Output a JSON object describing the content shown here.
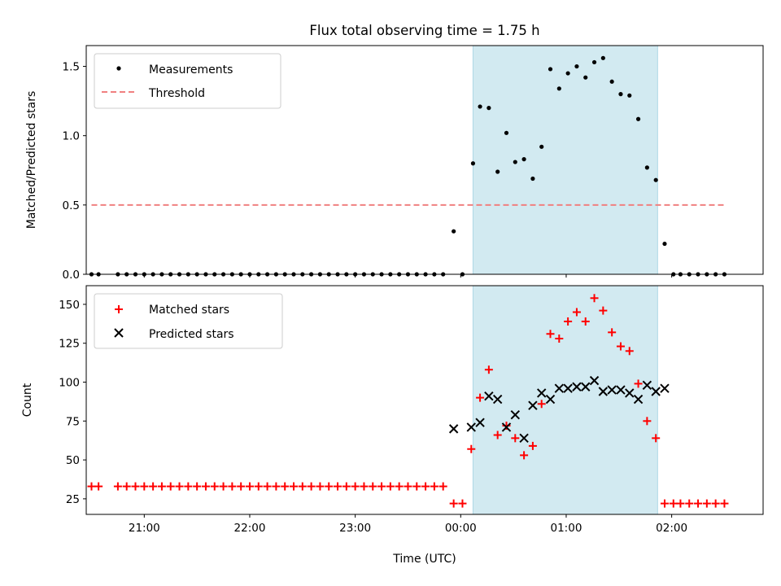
{
  "chart_data": [
    {
      "type": "scatter",
      "title": "Flux total observing time = 1.75 h",
      "xlabel": "",
      "ylabel": "Matched/Predicted stars",
      "ylim": [
        0,
        1.65
      ],
      "yticks": [
        "0.0",
        "0.5",
        "1.0",
        "1.5"
      ],
      "ytick_values": [
        0,
        0.5,
        1.0,
        1.5
      ],
      "xlim": [
        "20:27",
        "02:52"
      ],
      "shaded_interval": [
        "00:07",
        "01:52"
      ],
      "shade_color": "#add8e6",
      "legend": {
        "position": "upper left",
        "entries": [
          "Measurements",
          "Threshold"
        ]
      },
      "threshold": {
        "name": "Threshold",
        "value": 0.5,
        "x_start": "20:30",
        "x_end": "02:30",
        "color": "#f08080",
        "style": "dashed"
      },
      "series": [
        {
          "name": "Measurements",
          "color": "#000000",
          "marker": "dot",
          "points": [
            [
              "20:30",
              0
            ],
            [
              "20:34",
              0
            ],
            [
              "20:45",
              0
            ],
            [
              "20:50",
              0
            ],
            [
              "20:55",
              0
            ],
            [
              "21:00",
              0
            ],
            [
              "21:05",
              0
            ],
            [
              "21:10",
              0
            ],
            [
              "21:15",
              0
            ],
            [
              "21:20",
              0
            ],
            [
              "21:25",
              0
            ],
            [
              "21:30",
              0
            ],
            [
              "21:35",
              0
            ],
            [
              "21:40",
              0
            ],
            [
              "21:45",
              0
            ],
            [
              "21:50",
              0
            ],
            [
              "21:55",
              0
            ],
            [
              "22:00",
              0
            ],
            [
              "22:05",
              0
            ],
            [
              "22:10",
              0
            ],
            [
              "22:15",
              0
            ],
            [
              "22:20",
              0
            ],
            [
              "22:25",
              0
            ],
            [
              "22:30",
              0
            ],
            [
              "22:35",
              0
            ],
            [
              "22:40",
              0
            ],
            [
              "22:45",
              0
            ],
            [
              "22:50",
              0
            ],
            [
              "22:55",
              0
            ],
            [
              "23:00",
              0
            ],
            [
              "23:05",
              0
            ],
            [
              "23:10",
              0
            ],
            [
              "23:15",
              0
            ],
            [
              "23:20",
              0
            ],
            [
              "23:25",
              0
            ],
            [
              "23:30",
              0
            ],
            [
              "23:35",
              0
            ],
            [
              "23:40",
              0
            ],
            [
              "23:45",
              0
            ],
            [
              "23:50",
              0
            ],
            [
              "23:56",
              0.31
            ],
            [
              "00:01",
              0
            ],
            [
              "00:07",
              0.8
            ],
            [
              "00:11",
              1.21
            ],
            [
              "00:16",
              1.2
            ],
            [
              "00:21",
              0.74
            ],
            [
              "00:26",
              1.02
            ],
            [
              "00:31",
              0.81
            ],
            [
              "00:36",
              0.83
            ],
            [
              "00:41",
              0.69
            ],
            [
              "00:46",
              0.92
            ],
            [
              "00:51",
              1.48
            ],
            [
              "00:56",
              1.34
            ],
            [
              "01:01",
              1.45
            ],
            [
              "01:06",
              1.5
            ],
            [
              "01:11",
              1.42
            ],
            [
              "01:16",
              1.53
            ],
            [
              "01:21",
              1.56
            ],
            [
              "01:26",
              1.39
            ],
            [
              "01:31",
              1.3
            ],
            [
              "01:36",
              1.29
            ],
            [
              "01:41",
              1.12
            ],
            [
              "01:46",
              0.77
            ],
            [
              "01:51",
              0.68
            ],
            [
              "01:56",
              0.22
            ],
            [
              "02:01",
              0
            ],
            [
              "02:05",
              0
            ],
            [
              "02:10",
              0
            ],
            [
              "02:15",
              0
            ],
            [
              "02:20",
              0
            ],
            [
              "02:25",
              0
            ],
            [
              "02:30",
              0
            ]
          ]
        }
      ]
    },
    {
      "type": "scatter",
      "title": "",
      "xlabel": "Time (UTC)",
      "ylabel": "Count",
      "ylim": [
        15,
        162
      ],
      "yticks": [
        "25",
        "50",
        "75",
        "100",
        "125",
        "150"
      ],
      "ytick_values": [
        25,
        50,
        75,
        100,
        125,
        150
      ],
      "xticks": [
        "21:00",
        "22:00",
        "23:00",
        "00:00",
        "01:00",
        "02:00"
      ],
      "xlim": [
        "20:27",
        "02:52"
      ],
      "shaded_interval": [
        "00:07",
        "01:52"
      ],
      "shade_color": "#add8e6",
      "legend": {
        "position": "upper left",
        "entries": [
          "Matched stars",
          "Predicted stars"
        ]
      },
      "series": [
        {
          "name": "Matched stars",
          "color": "#ff0000",
          "marker": "plus",
          "points": [
            [
              "20:30",
              33
            ],
            [
              "20:34",
              33
            ],
            [
              "20:45",
              33
            ],
            [
              "20:50",
              33
            ],
            [
              "20:55",
              33
            ],
            [
              "21:00",
              33
            ],
            [
              "21:05",
              33
            ],
            [
              "21:10",
              33
            ],
            [
              "21:15",
              33
            ],
            [
              "21:20",
              33
            ],
            [
              "21:25",
              33
            ],
            [
              "21:30",
              33
            ],
            [
              "21:35",
              33
            ],
            [
              "21:40",
              33
            ],
            [
              "21:45",
              33
            ],
            [
              "21:50",
              33
            ],
            [
              "21:55",
              33
            ],
            [
              "22:00",
              33
            ],
            [
              "22:05",
              33
            ],
            [
              "22:10",
              33
            ],
            [
              "22:15",
              33
            ],
            [
              "22:20",
              33
            ],
            [
              "22:25",
              33
            ],
            [
              "22:30",
              33
            ],
            [
              "22:35",
              33
            ],
            [
              "22:40",
              33
            ],
            [
              "22:45",
              33
            ],
            [
              "22:50",
              33
            ],
            [
              "22:55",
              33
            ],
            [
              "23:00",
              33
            ],
            [
              "23:05",
              33
            ],
            [
              "23:10",
              33
            ],
            [
              "23:15",
              33
            ],
            [
              "23:20",
              33
            ],
            [
              "23:25",
              33
            ],
            [
              "23:30",
              33
            ],
            [
              "23:35",
              33
            ],
            [
              "23:40",
              33
            ],
            [
              "23:45",
              33
            ],
            [
              "23:50",
              33
            ],
            [
              "23:56",
              22
            ],
            [
              "00:01",
              22
            ],
            [
              "00:06",
              57
            ],
            [
              "00:11",
              90
            ],
            [
              "00:16",
              108
            ],
            [
              "00:21",
              66
            ],
            [
              "00:26",
              72
            ],
            [
              "00:31",
              64
            ],
            [
              "00:36",
              53
            ],
            [
              "00:41",
              59
            ],
            [
              "00:46",
              86
            ],
            [
              "00:51",
              131
            ],
            [
              "00:56",
              128
            ],
            [
              "01:01",
              139
            ],
            [
              "01:06",
              145
            ],
            [
              "01:11",
              139
            ],
            [
              "01:16",
              154
            ],
            [
              "01:21",
              146
            ],
            [
              "01:26",
              132
            ],
            [
              "01:31",
              123
            ],
            [
              "01:36",
              120
            ],
            [
              "01:41",
              99
            ],
            [
              "01:46",
              75
            ],
            [
              "01:51",
              64
            ],
            [
              "01:56",
              22
            ],
            [
              "02:01",
              22
            ],
            [
              "02:05",
              22
            ],
            [
              "02:10",
              22
            ],
            [
              "02:15",
              22
            ],
            [
              "02:20",
              22
            ],
            [
              "02:25",
              22
            ],
            [
              "02:30",
              22
            ]
          ]
        },
        {
          "name": "Predicted stars",
          "color": "#000000",
          "marker": "x",
          "points": [
            [
              "23:56",
              70
            ],
            [
              "00:06",
              71
            ],
            [
              "00:11",
              74
            ],
            [
              "00:16",
              91
            ],
            [
              "00:21",
              89
            ],
            [
              "00:26",
              71
            ],
            [
              "00:31",
              79
            ],
            [
              "00:36",
              64
            ],
            [
              "00:41",
              85
            ],
            [
              "00:46",
              93
            ],
            [
              "00:51",
              89
            ],
            [
              "00:56",
              96
            ],
            [
              "01:01",
              96
            ],
            [
              "01:06",
              97
            ],
            [
              "01:11",
              97
            ],
            [
              "01:16",
              101
            ],
            [
              "01:21",
              94
            ],
            [
              "01:26",
              95
            ],
            [
              "01:31",
              95
            ],
            [
              "01:36",
              93
            ],
            [
              "01:41",
              89
            ],
            [
              "01:46",
              98
            ],
            [
              "01:51",
              94
            ],
            [
              "01:56",
              96
            ]
          ]
        }
      ]
    }
  ]
}
